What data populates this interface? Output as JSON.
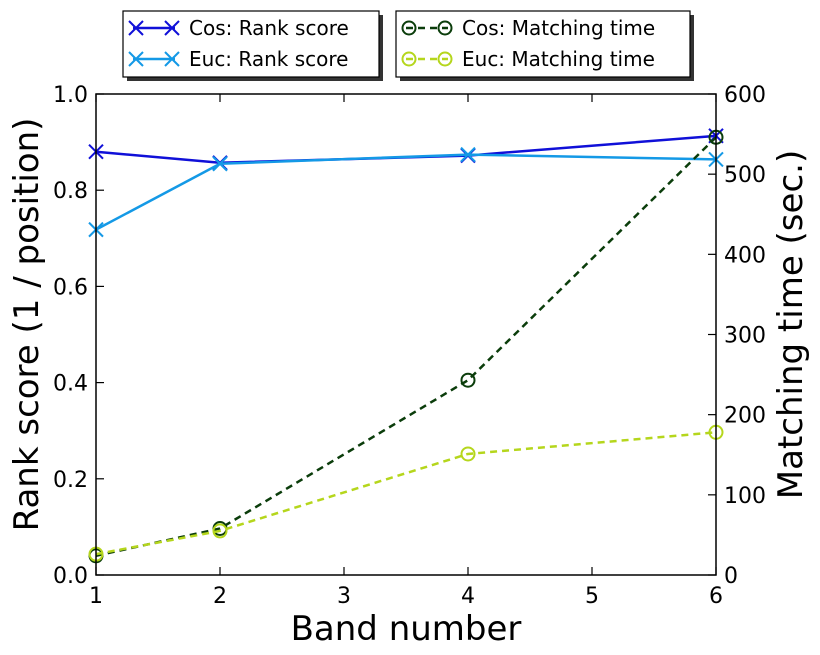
{
  "chart_data": {
    "type": "line",
    "xlabel": "Band number",
    "ylabel_left": "Rank score (1 / position)",
    "ylabel_right": "Matching time (sec.)",
    "xlim": [
      1,
      6
    ],
    "ylim_left": [
      0.0,
      1.0
    ],
    "ylim_right": [
      0,
      600
    ],
    "x_ticks": [
      "1",
      "2",
      "3",
      "4",
      "5",
      "6"
    ],
    "y_left_ticks": [
      "0.0",
      "0.2",
      "0.4",
      "0.6",
      "0.8",
      "1.0"
    ],
    "y_right_ticks": [
      "0",
      "100",
      "200",
      "300",
      "400",
      "500",
      "600"
    ],
    "grid": false,
    "legend_placement": "above-plot",
    "series": [
      {
        "name": "Cos: Rank score",
        "axis": "left",
        "style": "solid",
        "marker": "x",
        "color": "#1010d8",
        "x": [
          1,
          2,
          4,
          6
        ],
        "y": [
          0.88,
          0.857,
          0.872,
          0.913
        ]
      },
      {
        "name": "Euc: Rank score",
        "axis": "left",
        "style": "solid",
        "marker": "x",
        "color": "#1499e6",
        "x": [
          1,
          2,
          4,
          6
        ],
        "y": [
          0.718,
          0.855,
          0.874,
          0.864
        ]
      },
      {
        "name": "Cos: Matching time",
        "axis": "right",
        "style": "dashed",
        "marker": "o",
        "color": "#0b3d0b",
        "x": [
          1,
          2,
          4,
          6
        ],
        "y": [
          24,
          58,
          243,
          546
        ]
      },
      {
        "name": "Euc: Matching time",
        "axis": "right",
        "style": "dashed",
        "marker": "o",
        "color": "#b5d61c",
        "x": [
          1,
          2,
          4,
          6
        ],
        "y": [
          26,
          55,
          151,
          178
        ]
      }
    ]
  }
}
